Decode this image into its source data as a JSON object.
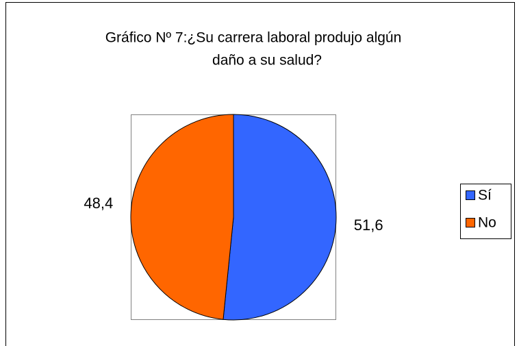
{
  "chart_data": {
    "type": "pie",
    "title": [
      "Gráfico Nº 7:¿Su carrera laboral produjo algún",
      "daño a su salud?"
    ],
    "categories": [
      "Sí",
      "No"
    ],
    "values": [
      51.6,
      48.4
    ],
    "value_labels": [
      "51,6",
      "48,4"
    ],
    "colors": [
      "#3366ff",
      "#ff6600"
    ],
    "legend": "right"
  }
}
